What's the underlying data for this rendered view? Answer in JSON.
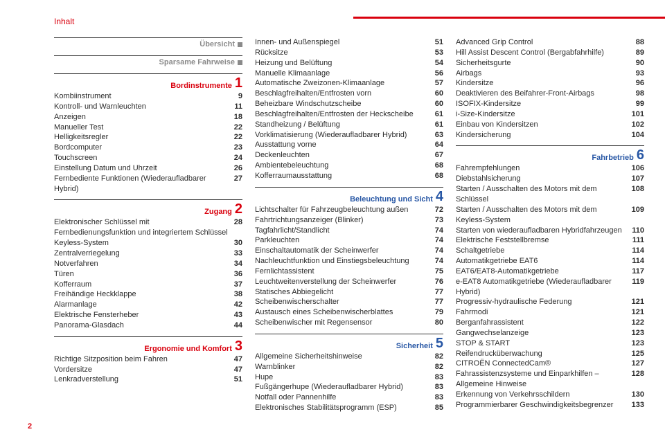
{
  "colors": {
    "accent_red": "#d9000d",
    "accent_blue": "#2857a5",
    "grey": "#8a8a8a",
    "text": "#2b2b2b"
  },
  "header": {
    "title": "Inhalt"
  },
  "page_number": "2",
  "columns": [
    {
      "sections": [
        {
          "type": "plain",
          "title": "Übersicht",
          "title_color": "#8a8a8a",
          "square_color": "#8a8a8a",
          "entries": []
        },
        {
          "type": "plain",
          "title": "Sparsame Fahrweise",
          "title_color": "#8a8a8a",
          "square_color": "#8a8a8a",
          "entries": []
        },
        {
          "type": "numbered",
          "num": "1",
          "title": "Bordinstrumente",
          "title_color": "#d9000d",
          "num_color": "#d9000d",
          "entries": [
            {
              "label": "Kombiinstrument",
              "page": "9"
            },
            {
              "label": "Kontroll- und Warnleuchten",
              "page": "11"
            },
            {
              "label": "Anzeigen",
              "page": "18"
            },
            {
              "label": "Manueller Test",
              "page": "22"
            },
            {
              "label": "Helligkeitsregler",
              "page": "22"
            },
            {
              "label": "Bordcomputer",
              "page": "23"
            },
            {
              "label": "Touchscreen",
              "page": "24"
            },
            {
              "label": "Einstellung Datum und Uhrzeit",
              "page": "26"
            },
            {
              "label": "Fernbediente Funktionen (Wiederaufladbarer Hybrid)",
              "page": "27"
            }
          ]
        },
        {
          "type": "numbered",
          "num": "2",
          "title": "Zugang",
          "title_color": "#d9000d",
          "num_color": "#d9000d",
          "entries": [
            {
              "label": "Elektronischer Schlüssel mit Fernbedienungsfunktion und integriertem Schlüssel",
              "page": "28"
            },
            {
              "label": "Keyless-System",
              "page": "30"
            },
            {
              "label": "Zentralverriegelung",
              "page": "33"
            },
            {
              "label": "Notverfahren",
              "page": "34"
            },
            {
              "label": "Türen",
              "page": "36"
            },
            {
              "label": "Kofferraum",
              "page": "37"
            },
            {
              "label": "Freihändige Heckklappe",
              "page": "38"
            },
            {
              "label": "Alarmanlage",
              "page": "42"
            },
            {
              "label": "Elektrische Fensterheber",
              "page": "43"
            },
            {
              "label": "Panorama-Glasdach",
              "page": "44"
            }
          ]
        },
        {
          "type": "numbered",
          "num": "3",
          "title": "Ergonomie und Komfort",
          "title_color": "#d9000d",
          "num_color": "#d9000d",
          "entries": [
            {
              "label": "Richtige Sitzposition beim Fahren",
              "page": "47"
            },
            {
              "label": "Vordersitze",
              "page": "47"
            },
            {
              "label": "Lenkradverstellung",
              "page": "51"
            }
          ]
        }
      ]
    },
    {
      "sections": [
        {
          "type": "continue",
          "entries": [
            {
              "label": "Innen- und Außenspiegel",
              "page": "51"
            },
            {
              "label": "Rücksitze",
              "page": "53"
            },
            {
              "label": "Heizung und Belüftung",
              "page": "54"
            },
            {
              "label": "Manuelle Klimaanlage",
              "page": "56"
            },
            {
              "label": "Automatische Zweizonen-Klimaanlage",
              "page": "57"
            },
            {
              "label": "Beschlagfreihalten/Entfrosten vorn",
              "page": "60"
            },
            {
              "label": "Beheizbare Windschutzscheibe",
              "page": "60"
            },
            {
              "label": "Beschlagfreihalten/Entfrosten der Heckscheibe",
              "page": "61"
            },
            {
              "label": "Standheizung / Belüftung",
              "page": "61"
            },
            {
              "label": "Vorklimatisierung (Wiederaufladbarer Hybrid)",
              "page": "63"
            },
            {
              "label": "Ausstattung vorne",
              "page": "64"
            },
            {
              "label": "Deckenleuchten",
              "page": "67"
            },
            {
              "label": "Ambientebeleuchtung",
              "page": "68"
            },
            {
              "label": "Kofferraumausstattung",
              "page": "68"
            }
          ]
        },
        {
          "type": "numbered",
          "num": "4",
          "title": "Beleuchtung und Sicht",
          "title_color": "#2857a5",
          "num_color": "#2857a5",
          "entries": [
            {
              "label": "Lichtschalter für Fahrzeugbeleuchtung außen",
              "page": "72"
            },
            {
              "label": "Fahrtrichtungsanzeiger (Blinker)",
              "page": "73"
            },
            {
              "label": "Tagfahrlicht/Standlicht",
              "page": "74"
            },
            {
              "label": "Parkleuchten",
              "page": "74"
            },
            {
              "label": "Einschaltautomatik der Scheinwerfer",
              "page": "74"
            },
            {
              "label": "Nachleuchtfunktion und Einstiegsbeleuchtung",
              "page": "74"
            },
            {
              "label": "Fernlichtassistent",
              "page": "75"
            },
            {
              "label": "Leuchtweitenverstellung der Scheinwerfer",
              "page": "76"
            },
            {
              "label": "Statisches Abbiegelicht",
              "page": "77"
            },
            {
              "label": "Scheibenwischerschalter",
              "page": "77"
            },
            {
              "label": "Austausch eines Scheibenwischerblattes",
              "page": "79"
            },
            {
              "label": "Scheibenwischer mit Regensensor",
              "page": "80"
            }
          ]
        },
        {
          "type": "numbered",
          "num": "5",
          "title": "Sicherheit",
          "title_color": "#2857a5",
          "num_color": "#2857a5",
          "entries": [
            {
              "label": "Allgemeine Sicherheitshinweise",
              "page": "82"
            },
            {
              "label": "Warnblinker",
              "page": "82"
            },
            {
              "label": "Hupe",
              "page": "83"
            },
            {
              "label": "Fußgängerhupe (Wiederaufladbarer Hybrid)",
              "page": "83"
            },
            {
              "label": "Notfall oder Pannenhilfe",
              "page": "83"
            },
            {
              "label": "Elektronisches Stabilitätsprogramm (ESP)",
              "page": "85"
            }
          ]
        }
      ]
    },
    {
      "sections": [
        {
          "type": "continue",
          "entries": [
            {
              "label": "Advanced Grip Control",
              "page": "88"
            },
            {
              "label": "Hill Assist Descent Control (Bergabfahrhilfe)",
              "page": "89"
            },
            {
              "label": "Sicherheitsgurte",
              "page": "90"
            },
            {
              "label": "Airbags",
              "page": "93"
            },
            {
              "label": "Kindersitze",
              "page": "96"
            },
            {
              "label": "Deaktivieren des Beifahrer-Front-Airbags",
              "page": "98"
            },
            {
              "label": "ISOFIX-Kindersitze",
              "page": "99"
            },
            {
              "label": "i-Size-Kindersitze",
              "page": "101"
            },
            {
              "label": "Einbau von Kindersitzen",
              "page": "102"
            },
            {
              "label": "Kindersicherung",
              "page": "104"
            }
          ]
        },
        {
          "type": "numbered",
          "num": "6",
          "title": "Fahrbetrieb",
          "title_color": "#2857a5",
          "num_color": "#2857a5",
          "entries": [
            {
              "label": "Fahrempfehlungen",
              "page": "106"
            },
            {
              "label": "Diebstahlsicherung",
              "page": "107"
            },
            {
              "label": "Starten / Ausschalten des Motors mit dem Schlüssel",
              "page": "108"
            },
            {
              "label": "Starten / Ausschalten des Motors mit dem Keyless-System",
              "page": "109"
            },
            {
              "label": "Starten von wiederaufladbaren Hybridfahrzeugen",
              "page": "110"
            },
            {
              "label": "Elektrische Feststellbremse",
              "page": "111"
            },
            {
              "label": "Schaltgetriebe",
              "page": "114"
            },
            {
              "label": "Automatikgetriebe EAT6",
              "page": "114"
            },
            {
              "label": "EAT6/EAT8-Automatikgetriebe",
              "page": "117"
            },
            {
              "label": "e-EAT8 Automatikgetriebe (Wiederaufladbarer Hybrid)",
              "page": "119"
            },
            {
              "label": "Progressiv-hydraulische Federung",
              "page": "121"
            },
            {
              "label": "Fahrmodi",
              "page": "121"
            },
            {
              "label": "Berganfahrassistent",
              "page": "122"
            },
            {
              "label": "Gangwechselanzeige",
              "page": "123"
            },
            {
              "label": "STOP & START",
              "page": "123"
            },
            {
              "label": "Reifendrucküberwachung",
              "page": "125"
            },
            {
              "label": "CITROËN ConnectedCam®",
              "page": "127"
            },
            {
              "label": "Fahrassistenzsysteme und Einparkhilfen – Allgemeine Hinweise",
              "page": "128"
            },
            {
              "label": "Erkennung von Verkehrsschildern",
              "page": "130"
            },
            {
              "label": "Programmierbarer Geschwindigkeitsbegrenzer",
              "page": "133"
            }
          ]
        }
      ]
    }
  ]
}
